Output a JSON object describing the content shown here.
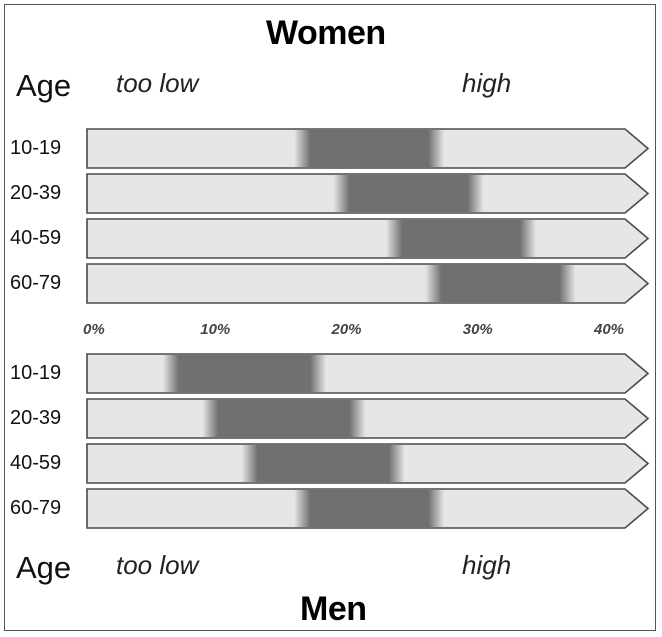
{
  "chart_data": {
    "type": "range-bar",
    "x_unit": "%",
    "x_ticks": [
      0,
      10,
      20,
      30,
      40
    ],
    "x_tick_labels": [
      "0%",
      "10%",
      "20%",
      "30%",
      "40%"
    ],
    "xlim": [
      0,
      44
    ],
    "age_header": "Age",
    "low_label": "too low",
    "high_label": "high",
    "groups": [
      {
        "title": "Women",
        "rows": [
          {
            "age": "10-19",
            "low": 17,
            "high": 26
          },
          {
            "age": "20-39",
            "low": 20,
            "high": 29
          },
          {
            "age": "40-59",
            "low": 24,
            "high": 33
          },
          {
            "age": "60-79",
            "low": 27,
            "high": 36
          }
        ]
      },
      {
        "title": "Men",
        "rows": [
          {
            "age": "10-19",
            "low": 7,
            "high": 17
          },
          {
            "age": "20-39",
            "low": 10,
            "high": 20
          },
          {
            "age": "40-59",
            "low": 13,
            "high": 23
          },
          {
            "age": "60-79",
            "low": 17,
            "high": 26
          }
        ]
      }
    ]
  },
  "colors": {
    "bar_fill": "#e6e6e6",
    "bar_stroke": "#4a4a4a",
    "band_fill": "#707070"
  }
}
